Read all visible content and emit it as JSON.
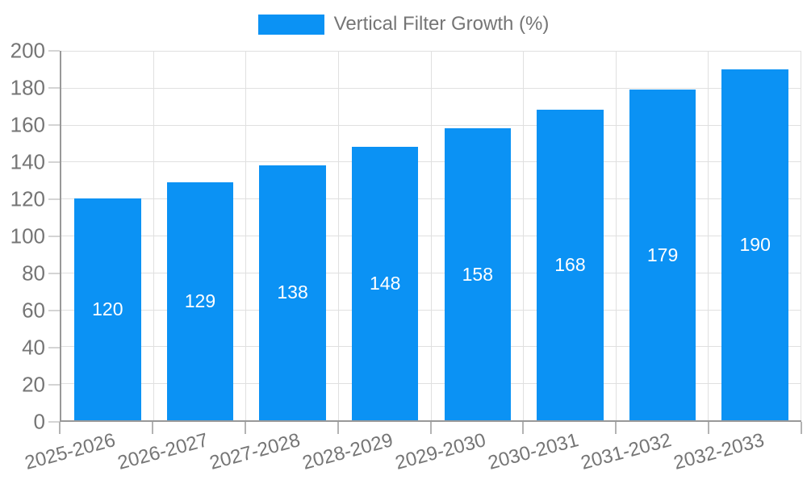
{
  "chart_data": {
    "type": "bar",
    "title": "",
    "legend_label": "Vertical Filter Growth (%)",
    "legend_position": "top-center",
    "categories": [
      "2025-2026",
      "2026-2027",
      "2027-2028",
      "2028-2029",
      "2029-2030",
      "2030-2031",
      "2031-2032",
      "2032-2033"
    ],
    "values": [
      120,
      129,
      138,
      148,
      158,
      168,
      179,
      190
    ],
    "xlabel": "",
    "ylabel": "",
    "ylim": [
      0,
      200
    ],
    "yticks": [
      0,
      20,
      40,
      60,
      80,
      100,
      120,
      140,
      160,
      180,
      200
    ],
    "grid": true,
    "bar_width_fraction": 0.72,
    "colors": {
      "bar": "#0b92f4",
      "value_label": "#ffffff",
      "axis_text": "#757575",
      "grid_line": "#e0e0e0",
      "axis_line": "#999999",
      "x_tick": "#b3b3b3",
      "y_tick": "#d4d4d4",
      "background": "#ffffff"
    }
  }
}
